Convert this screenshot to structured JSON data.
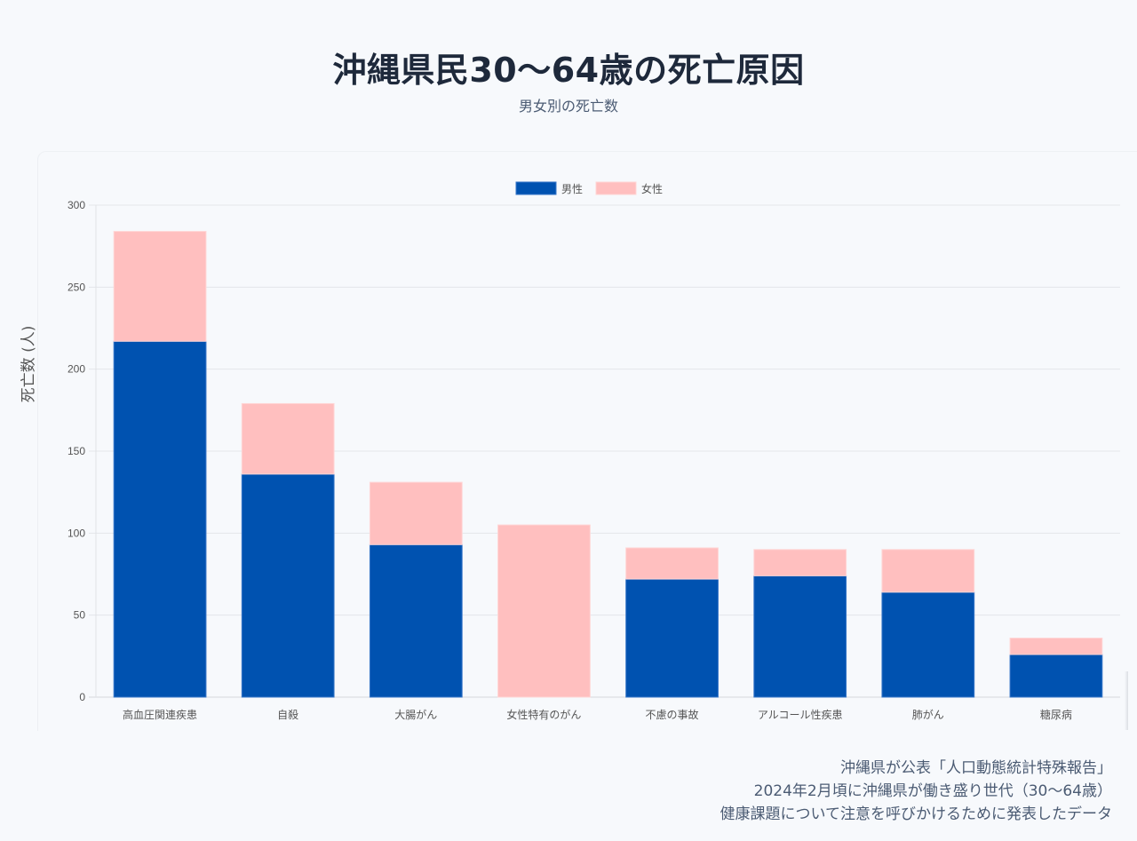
{
  "header": {
    "title": "沖縄県民30〜64歳の死亡原因",
    "subtitle": "男女別の死亡数"
  },
  "chart_data": {
    "type": "bar",
    "stacked": true,
    "title": "沖縄県民30〜64歳の死亡原因",
    "subtitle": "男女別の死亡数",
    "xlabel": "",
    "ylabel": "死亡数 (人)",
    "ylim": [
      0,
      300
    ],
    "yticks": [
      0,
      50,
      100,
      150,
      200,
      250,
      300
    ],
    "grid": true,
    "legend_position": "top-center",
    "categories": [
      "高血圧関連疾患",
      "自殺",
      "大腸がん",
      "女性特有のがん",
      "不慮の事故",
      "アルコール性疾患",
      "肺がん",
      "糖尿病"
    ],
    "series": [
      {
        "name": "男性",
        "color": "#0052b0",
        "values": [
          217,
          136,
          93,
          0,
          72,
          74,
          64,
          26
        ]
      },
      {
        "name": "女性",
        "color": "#ffbfbf",
        "values": [
          67,
          43,
          38,
          105,
          19,
          16,
          26,
          10
        ]
      }
    ],
    "totals": [
      284,
      179,
      131,
      105,
      91,
      90,
      90,
      36
    ]
  },
  "footnote": {
    "lines": [
      "沖縄県が公表「人口動態統計特殊報告」",
      "2024年2月頃に沖縄県が働き盛り世代（30〜64歳）",
      "健康課題について注意を呼びかけるために発表したデータ"
    ]
  }
}
